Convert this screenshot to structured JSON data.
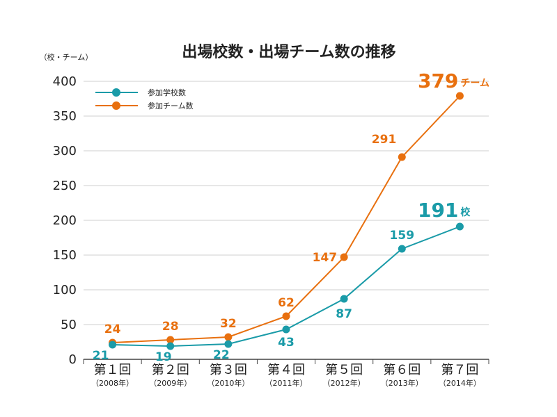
{
  "chart_data": {
    "type": "line",
    "title": "出場校数・出場チーム数の推移",
    "unit_label": "（校・チーム）",
    "categories": [
      "第１回",
      "第２回",
      "第３回",
      "第４回",
      "第５回",
      "第６回",
      "第７回"
    ],
    "years": [
      "（2008年）",
      "（2009年）",
      "（2010年）",
      "（2011年）",
      "（2012年）",
      "（2013年）",
      "（2014年）"
    ],
    "ylim": [
      0,
      400
    ],
    "yticks": [
      0,
      50,
      100,
      150,
      200,
      250,
      300,
      350,
      400
    ],
    "grid": true,
    "legend_position": "top-left",
    "series": [
      {
        "name": "参加学校数",
        "color": "#1a9ba8",
        "values": [
          21,
          19,
          22,
          43,
          87,
          159,
          191
        ],
        "final_label": "191",
        "final_unit": "校"
      },
      {
        "name": "参加チーム数",
        "color": "#e8700f",
        "values": [
          24,
          28,
          32,
          62,
          147,
          291,
          379
        ],
        "final_label": "379",
        "final_unit": "チーム"
      }
    ]
  }
}
